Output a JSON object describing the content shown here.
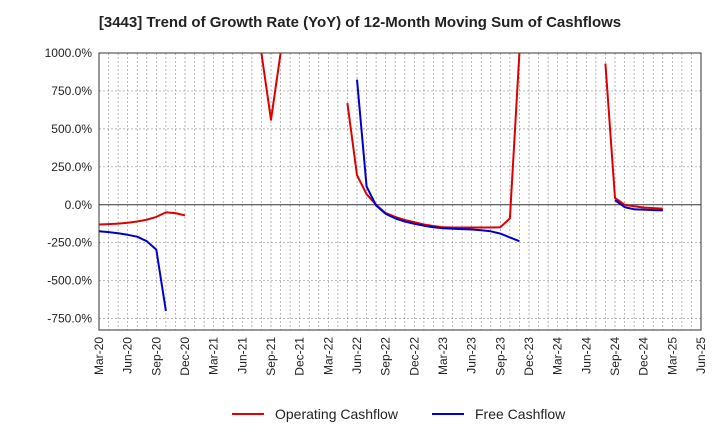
{
  "chart_data": {
    "type": "line",
    "title": "[3443]  Trend of Growth Rate (YoY) of 12-Month Moving Sum of Cashflows",
    "xlabel": "",
    "ylabel": "",
    "ylim": [
      -825,
      1000
    ],
    "y_ticks": [
      "1000.0%",
      "750.0%",
      "500.0%",
      "250.0%",
      "0.0%",
      "-250.0%",
      "-500.0%",
      "-750.0%"
    ],
    "y_tick_values": [
      1000,
      750,
      500,
      250,
      0,
      -250,
      -500,
      -750
    ],
    "x_ticks": [
      "Mar-20",
      "Jun-20",
      "Sep-20",
      "Dec-20",
      "Mar-21",
      "Jun-21",
      "Sep-21",
      "Dec-21",
      "Mar-22",
      "Jun-22",
      "Sep-22",
      "Dec-22",
      "Mar-23",
      "Jun-23",
      "Sep-23",
      "Dec-23",
      "Mar-24",
      "Jun-24",
      "Sep-24",
      "Dec-24",
      "Mar-25",
      "Jun-25"
    ],
    "grid": true,
    "legend_position": "bottom",
    "series": [
      {
        "name": "Operating Cashflow",
        "color": "#dd0000",
        "segments": [
          [
            [
              "Mar-20",
              -130
            ],
            [
              "Apr-20",
              -127
            ],
            [
              "May-20",
              -124
            ],
            [
              "Jun-20",
              -118
            ],
            [
              "Jul-20",
              -110
            ],
            [
              "Aug-20",
              -98
            ],
            [
              "Sep-20",
              -80
            ],
            [
              "Oct-20",
              -50
            ],
            [
              "Nov-20",
              -55
            ],
            [
              "Dec-20",
              -70
            ]
          ],
          [
            [
              "Aug-21",
              1000
            ],
            [
              "Sep-21",
              560
            ],
            [
              "Oct-21",
              1000
            ]
          ],
          [
            [
              "May-22",
              670
            ],
            [
              "Jun-22",
              195
            ],
            [
              "Jul-22",
              70
            ],
            [
              "Aug-22",
              0
            ],
            [
              "Sep-22",
              -55
            ],
            [
              "Oct-22",
              -80
            ],
            [
              "Nov-22",
              -100
            ],
            [
              "Dec-22",
              -115
            ],
            [
              "Jan-23",
              -130
            ],
            [
              "Feb-23",
              -140
            ],
            [
              "Mar-23",
              -148
            ],
            [
              "Apr-23",
              -150
            ],
            [
              "May-23",
              -150
            ],
            [
              "Jun-23",
              -150
            ],
            [
              "Jul-23",
              -150
            ],
            [
              "Aug-23",
              -150
            ],
            [
              "Sep-23",
              -148
            ],
            [
              "Oct-23",
              -90
            ],
            [
              "Nov-23",
              1000
            ]
          ],
          [
            [
              "Aug-24",
              930
            ],
            [
              "Sep-24",
              45
            ],
            [
              "Oct-24",
              0
            ],
            [
              "Nov-24",
              -10
            ],
            [
              "Dec-24",
              -18
            ],
            [
              "Jan-25",
              -22
            ],
            [
              "Feb-25",
              -25
            ]
          ]
        ]
      },
      {
        "name": "Free Cashflow",
        "color": "#0000cc",
        "segments": [
          [
            [
              "Mar-20",
              -175
            ],
            [
              "Apr-20",
              -180
            ],
            [
              "May-20",
              -188
            ],
            [
              "Jun-20",
              -198
            ],
            [
              "Jul-20",
              -210
            ],
            [
              "Aug-20",
              -240
            ],
            [
              "Sep-20",
              -295
            ],
            [
              "Oct-20",
              -700
            ]
          ],
          [
            [
              "Jun-22",
              825
            ],
            [
              "Jul-22",
              120
            ],
            [
              "Aug-22",
              -5
            ],
            [
              "Sep-22",
              -60
            ],
            [
              "Oct-22",
              -90
            ],
            [
              "Nov-22",
              -110
            ],
            [
              "Dec-22",
              -125
            ],
            [
              "Jan-23",
              -138
            ],
            [
              "Feb-23",
              -148
            ],
            [
              "Mar-23",
              -155
            ],
            [
              "Apr-23",
              -158
            ],
            [
              "May-23",
              -160
            ],
            [
              "Jun-23",
              -163
            ],
            [
              "Jul-23",
              -168
            ],
            [
              "Aug-23",
              -175
            ],
            [
              "Sep-23",
              -190
            ],
            [
              "Oct-23",
              -215
            ],
            [
              "Nov-23",
              -240
            ]
          ],
          [
            [
              "Sep-24",
              30
            ],
            [
              "Oct-24",
              -15
            ],
            [
              "Nov-24",
              -30
            ],
            [
              "Dec-24",
              -32
            ],
            [
              "Jan-25",
              -35
            ],
            [
              "Feb-25",
              -37
            ]
          ]
        ]
      }
    ]
  }
}
